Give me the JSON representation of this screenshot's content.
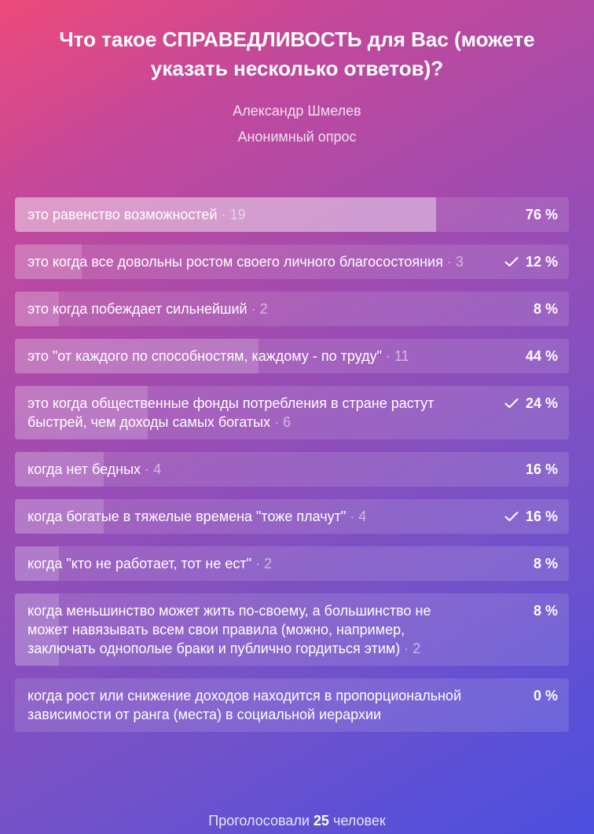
{
  "poll": {
    "title": "Что такое СПРАВЕДЛИВОСТЬ для Вас (можете указать несколько ответов)?",
    "author": "Александр Шмелев",
    "type": "Анонимный опрос",
    "options": [
      {
        "text": "это равенство возможностей",
        "count": "· 19",
        "percent": "76 %",
        "fraction": 0.76,
        "checked": false,
        "leader": true
      },
      {
        "text": "это когда все довольны ростом своего личного благосостояния",
        "count": "· 3",
        "percent": "12 %",
        "fraction": 0.12,
        "checked": true,
        "leader": false
      },
      {
        "text": "это когда побеждает сильнейший",
        "count": "· 2",
        "percent": "8 %",
        "fraction": 0.08,
        "checked": false,
        "leader": false
      },
      {
        "text": "это \"от каждого по способностям, каждому - по труду\"",
        "count": "· 11",
        "percent": "44 %",
        "fraction": 0.44,
        "checked": false,
        "leader": false
      },
      {
        "text": "это когда общественные фонды потребления в стране растут быстрей, чем доходы самых богатых",
        "count": "· 6",
        "percent": "24 %",
        "fraction": 0.24,
        "checked": true,
        "leader": false
      },
      {
        "text": "когда нет бедных",
        "count": "· 4",
        "percent": "16 %",
        "fraction": 0.16,
        "checked": false,
        "leader": false
      },
      {
        "text": "когда богатые в тяжелые времена \"тоже плачут\"",
        "count": "· 4",
        "percent": "16 %",
        "fraction": 0.16,
        "checked": true,
        "leader": false
      },
      {
        "text": "когда \"кто не работает, тот не ест\"",
        "count": "· 2",
        "percent": "8 %",
        "fraction": 0.08,
        "checked": false,
        "leader": false
      },
      {
        "text": "когда меньшинство может жить по-своему, а большинство не может навязывать всем свои правила (можно, например, заключать однополые браки и публично гордиться этим)",
        "count": "· 2",
        "percent": "8 %",
        "fraction": 0.08,
        "checked": false,
        "leader": false
      },
      {
        "text": "когда рост или снижение доходов находится в пропорциональной зависимости от ранга (места) в социальной иерархии",
        "count": "",
        "percent": "0 %",
        "fraction": 0,
        "checked": false,
        "leader": false
      }
    ],
    "footer": {
      "prefix": "Проголосовали",
      "total": "25",
      "suffix": "человек"
    },
    "check_icon": "check-icon"
  }
}
